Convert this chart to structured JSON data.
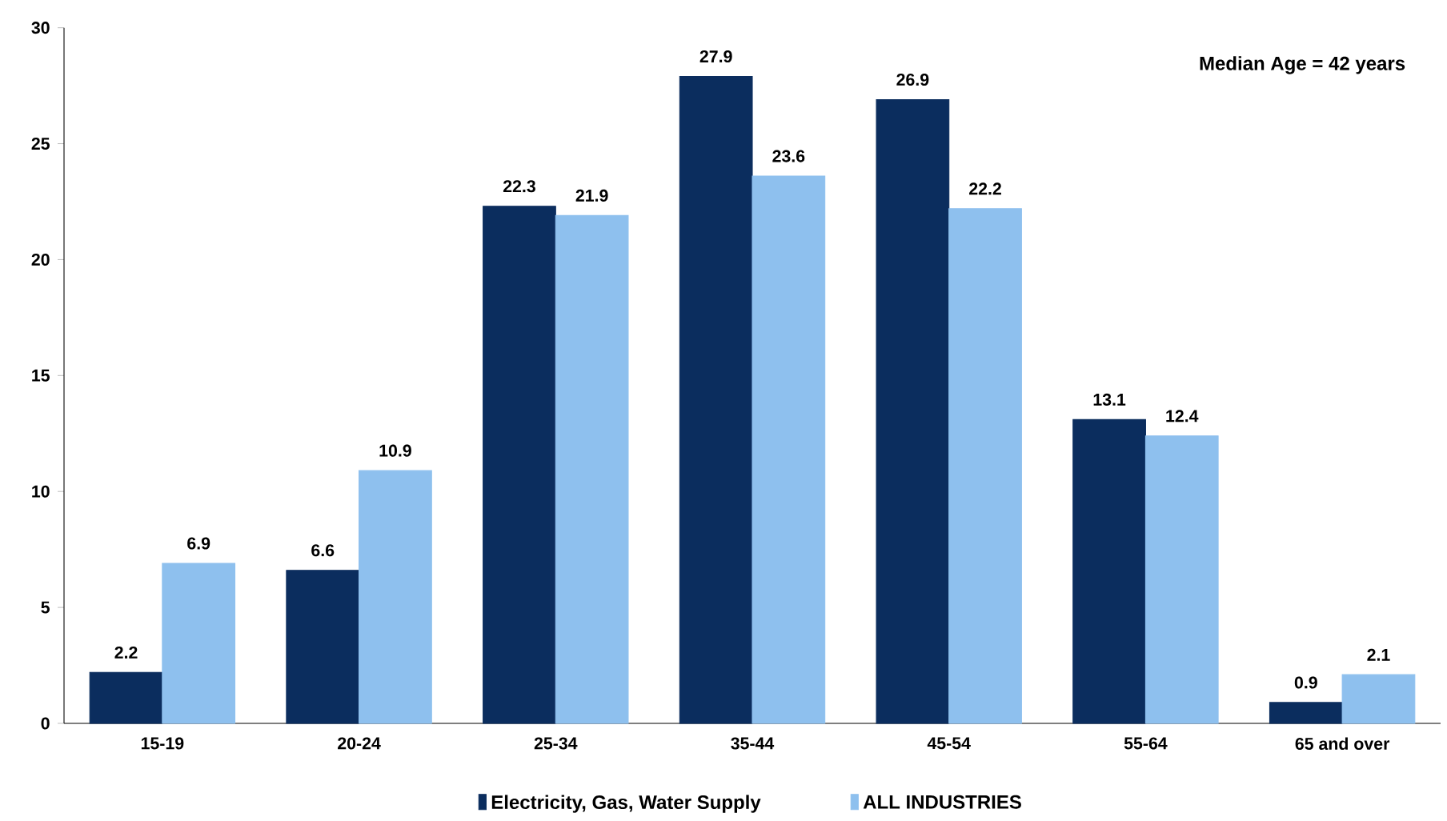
{
  "chart_data": {
    "type": "bar",
    "categories": [
      "15-19",
      "20-24",
      "25-34",
      "35-44",
      "45-54",
      "55-64",
      "65 and over"
    ],
    "series": [
      {
        "name": "Electricity, Gas, Water Supply",
        "color": "#0b2d5e",
        "values": [
          2.2,
          6.6,
          22.3,
          27.9,
          26.9,
          13.1,
          0.9
        ]
      },
      {
        "name": "ALL INDUSTRIES",
        "color": "#8ec0ee",
        "values": [
          6.9,
          10.9,
          21.9,
          23.6,
          22.2,
          12.4,
          2.1
        ]
      }
    ],
    "ylim": [
      0,
      30
    ],
    "yticks": [
      0,
      5,
      10,
      15,
      20,
      25,
      30
    ],
    "data_labels": true,
    "grid": false,
    "legend": "bottom",
    "annotations": [
      "Median Age = 42  years"
    ]
  }
}
